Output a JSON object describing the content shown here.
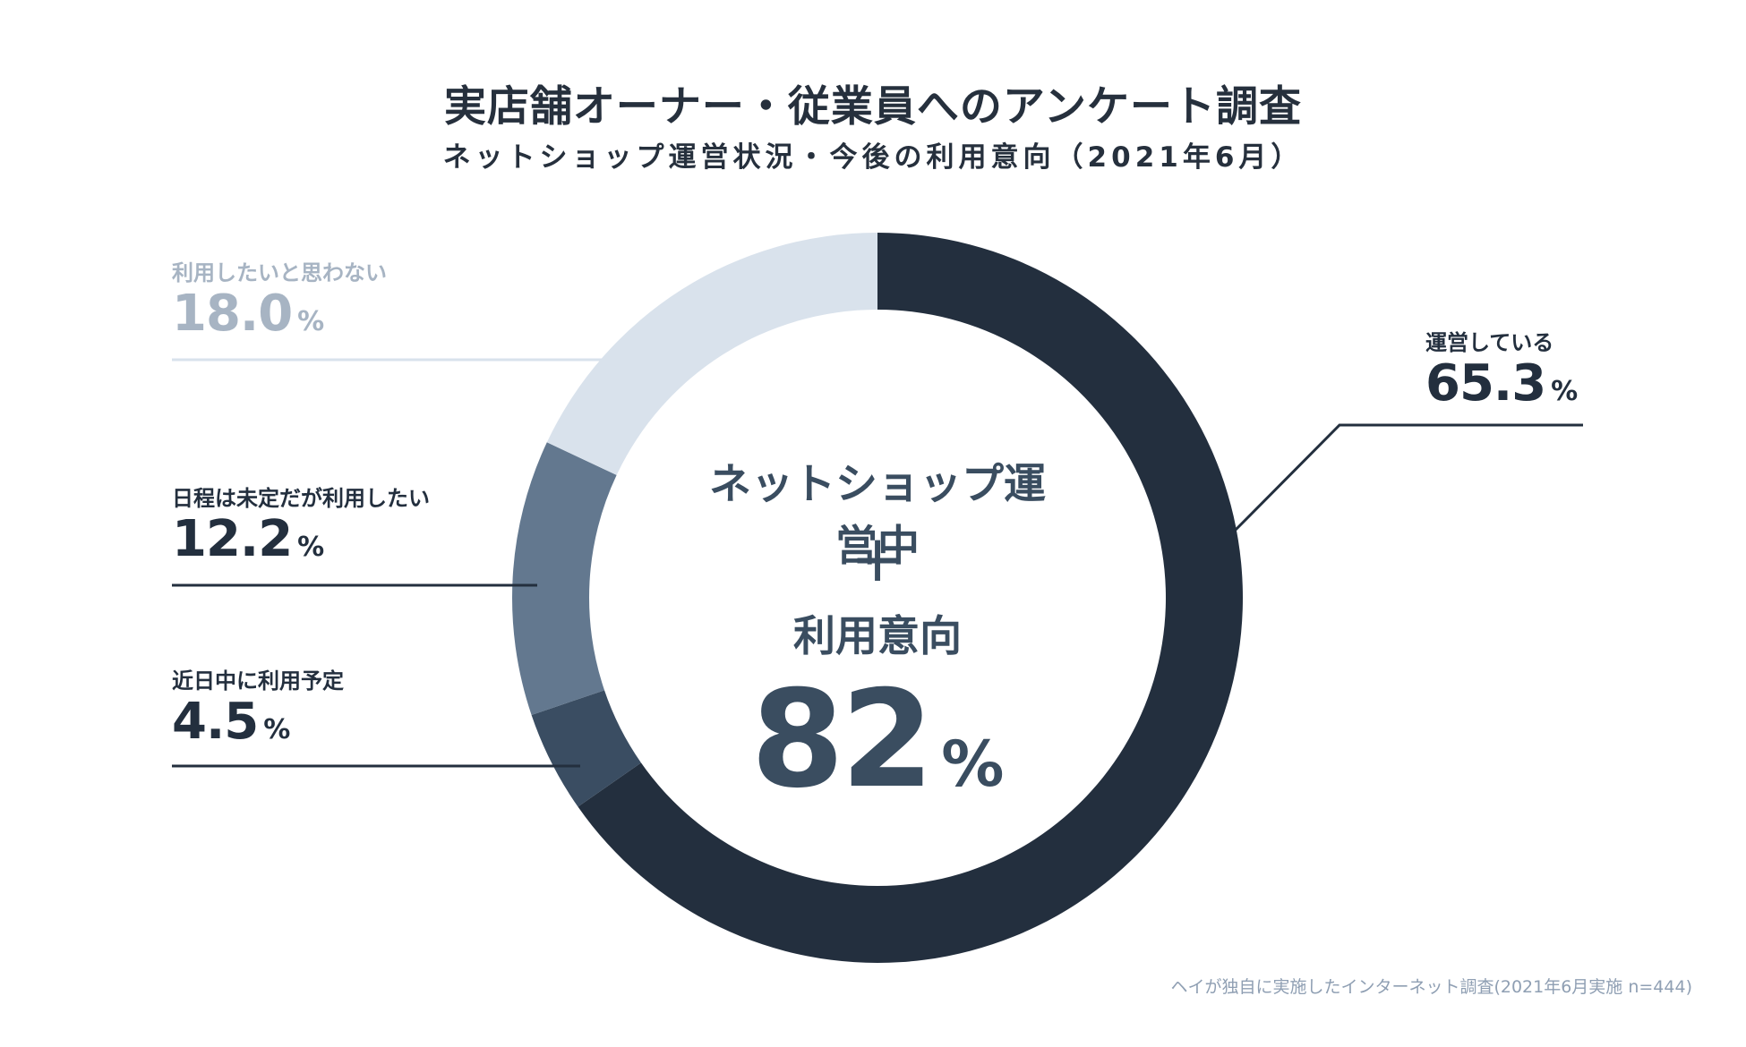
{
  "title": "実店舗オーナー・従業員へのアンケート調査",
  "subtitle": "ネットショップ運営状況・今後の利用意向（2021年6月）",
  "center": {
    "line1": "ネットショップ運営中",
    "plus": "+",
    "line3": "利用意向",
    "value": "82",
    "unit": "%"
  },
  "footnote": "ヘイが独自に実施したインターネット調査(2021年6月実施 n=444)",
  "chart_data": {
    "type": "pie",
    "title": "実店舗オーナー・従業員へのアンケート調査",
    "subtitle": "ネットショップ運営状況・今後の利用意向（2021年6月）",
    "unit": "%",
    "slices": [
      {
        "label": "運営している",
        "value": 65.3,
        "display": "65.3",
        "color": "#232f3e",
        "text_color": "#232f3e"
      },
      {
        "label": "近日中に利用予定",
        "value": 4.5,
        "display": "4.5",
        "color": "#3a4d62",
        "text_color": "#232f3e"
      },
      {
        "label": "日程は未定だが利用したい",
        "value": 12.2,
        "display": "12.2",
        "color": "#63788f",
        "text_color": "#232f3e"
      },
      {
        "label": "利用したいと思わない",
        "value": 18.0,
        "display": "18.0",
        "color": "#d9e2ec",
        "text_color": "#a7b4c3"
      }
    ]
  }
}
